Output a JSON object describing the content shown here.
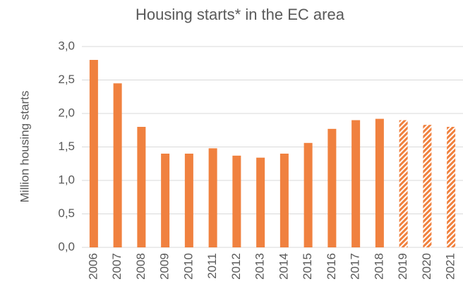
{
  "chart_data": {
    "type": "bar",
    "title": "Housing starts* in the EC area",
    "y_label": "Million housing starts",
    "categories": [
      "2006",
      "2007",
      "2008",
      "2009",
      "2010",
      "2011",
      "2012",
      "2013",
      "2014",
      "2015",
      "2016",
      "2017",
      "2018",
      "2019",
      "2020",
      "2021"
    ],
    "values": [
      2.8,
      2.45,
      1.8,
      1.4,
      1.4,
      1.48,
      1.37,
      1.34,
      1.4,
      1.56,
      1.77,
      1.9,
      1.92,
      1.9,
      1.83,
      1.8
    ],
    "hatched": [
      false,
      false,
      false,
      false,
      false,
      false,
      false,
      false,
      false,
      false,
      false,
      false,
      false,
      true,
      true,
      true
    ],
    "color": "#f0813f",
    "ylim": [
      0,
      3
    ],
    "yticks": [
      {
        "value": 0,
        "label": "0,0"
      },
      {
        "value": 0.5,
        "label": "0,5"
      },
      {
        "value": 1,
        "label": "1,0"
      },
      {
        "value": 1.5,
        "label": "1,5"
      },
      {
        "value": 2,
        "label": "2,0"
      },
      {
        "value": 2.5,
        "label": "2,5"
      },
      {
        "value": 3,
        "label": "3,0"
      }
    ],
    "grid": true
  }
}
